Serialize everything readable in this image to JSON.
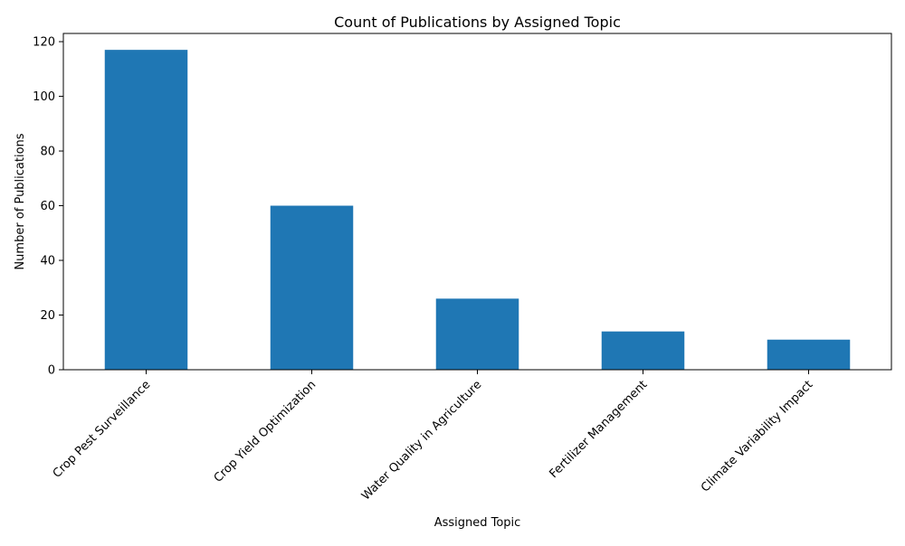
{
  "chart_data": {
    "type": "bar",
    "title": "Count of Publications by Assigned Topic",
    "xlabel": "Assigned Topic",
    "ylabel": "Number of Publications",
    "categories": [
      "Crop Pest Surveillance",
      "Crop Yield Optimization",
      "Water Quality in Agriculture",
      "Fertilizer Management",
      "Climate Variability Impact"
    ],
    "values": [
      117,
      60,
      26,
      14,
      11
    ],
    "ylim": [
      0,
      123
    ],
    "yticks": [
      0,
      20,
      40,
      60,
      80,
      100,
      120
    ],
    "bar_color": "#1f77b4",
    "grid": false,
    "legend": false
  }
}
